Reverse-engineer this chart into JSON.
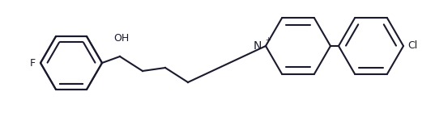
{
  "bg_color": "#ffffff",
  "line_color": "#1a1a2e",
  "line_width": 1.5,
  "font_size": 9,
  "figsize": [
    5.37,
    1.5
  ],
  "dpi": 100,
  "F_label": "F",
  "OH_label": "OH",
  "Nplus_label": "N",
  "plus_label": "+",
  "Cl_label": "Cl",
  "xlim": [
    0,
    537
  ],
  "ylim": [
    0,
    150
  ]
}
